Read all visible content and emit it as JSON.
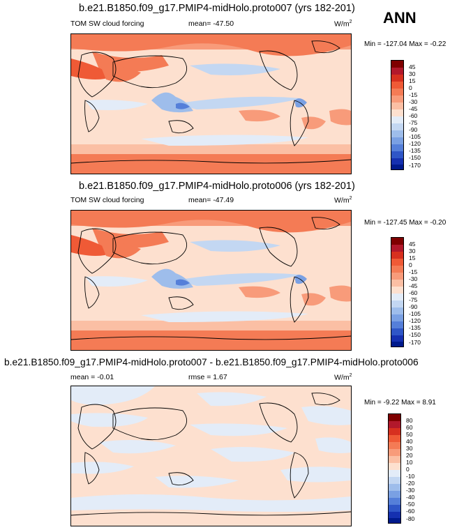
{
  "label": "ANN",
  "panels": [
    {
      "title": "b.e21.B1850.f09_g17.PMIP4-midHolo.proto007 (yrs 182-201)",
      "left_text": "TOM SW cloud forcing",
      "center_text": "mean= -47.50",
      "units": "W/m",
      "units_sup": "2",
      "minmax": "Min = -127.04 Max =  -0.22",
      "colorbar_labels": [
        "45",
        "30",
        "15",
        "0",
        "-15",
        "-30",
        "-45",
        "-60",
        "-75",
        "-90",
        "-105",
        "-120",
        "-135",
        "-150",
        "-170"
      ]
    },
    {
      "title": "b.e21.B1850.f09_g17.PMIP4-midHolo.proto006 (yrs 182-201)",
      "left_text": "TOM SW cloud forcing",
      "center_text": "mean= -47.49",
      "units": "W/m",
      "units_sup": "2",
      "minmax": "Min = -127.45 Max =  -0.20",
      "colorbar_labels": [
        "45",
        "30",
        "15",
        "0",
        "-15",
        "-30",
        "-45",
        "-60",
        "-75",
        "-90",
        "-105",
        "-120",
        "-135",
        "-150",
        "-170"
      ]
    },
    {
      "title": "b.e21.B1850.f09_g17.PMIP4-midHolo.proto007 - b.e21.B1850.f09_g17.PMIP4-midHolo.proto006",
      "left_text": "mean =  -0.01",
      "center_text": "rmse =   1.67",
      "units": "W/m",
      "units_sup": "2",
      "minmax": "Min = -9.22 Max =  8.91",
      "colorbar_labels": [
        "80",
        "60",
        "50",
        "40",
        "30",
        "20",
        "10",
        "0",
        "-10",
        "-20",
        "-30",
        "-40",
        "-50",
        "-60",
        "-80"
      ]
    }
  ],
  "colors": {
    "scale": [
      "#7f0000",
      "#b2182b",
      "#d7301f",
      "#ef5a36",
      "#f47b55",
      "#f89b7a",
      "#fbbfa4",
      "#fde0cf",
      "#e3ecf8",
      "#c3d7f2",
      "#9ebdeb",
      "#7aa0e3",
      "#557fd9",
      "#2f56c7",
      "#1530b0",
      "#001a8c"
    ]
  }
}
